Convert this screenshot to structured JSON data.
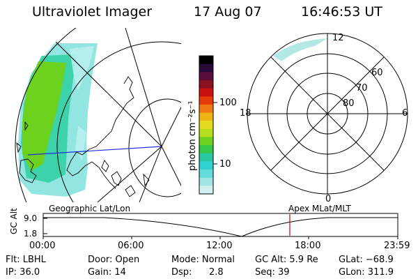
{
  "header": {
    "title": "Ultraviolet Imager",
    "date": "17 Aug 07",
    "time": "16:46:53 UT"
  },
  "colorbar": {
    "label": "photon cm⁻²s⁻¹",
    "ticks": [
      "100",
      "10"
    ],
    "colors": [
      "#000000",
      "#2a0a3a",
      "#5a0d3c",
      "#8a0f20",
      "#c81010",
      "#e63a0a",
      "#f07810",
      "#f0b414",
      "#e6dc1e",
      "#b4e01e",
      "#6cd21e",
      "#36c84a",
      "#28c8a0",
      "#30d2d2",
      "#64dcdc",
      "#a0e6e6",
      "#d2f0f0"
    ]
  },
  "polar": {
    "mlat_labels": [
      "80",
      "70",
      "60"
    ],
    "mlt_labels": [
      "12",
      "6",
      "0",
      "18"
    ]
  },
  "map": {
    "left_label": "Geographic Lat/Lon",
    "right_label": "Apex MLat/MLT"
  },
  "orbit": {
    "ylabel": "GC Alt",
    "yticks": [
      "9.0",
      "1.8"
    ],
    "xticks": [
      "00:00",
      "06:00",
      "12:00",
      "18:00",
      "23:59"
    ],
    "marker_color": "#cc0000"
  },
  "info": {
    "flt": "Flt: LBHL",
    "ip": "IP: 36.0",
    "door": "Door: Open",
    "gain": "Gain: 14",
    "mode": "Mode: Normal",
    "dsp_label": "Dsp:",
    "dsp_value": "2.8",
    "gcalt": "GC Alt: 5.9 Re",
    "seq": "Seq: 39",
    "glat": "GLat: −68.9",
    "glon": "GLon: 311.9"
  }
}
